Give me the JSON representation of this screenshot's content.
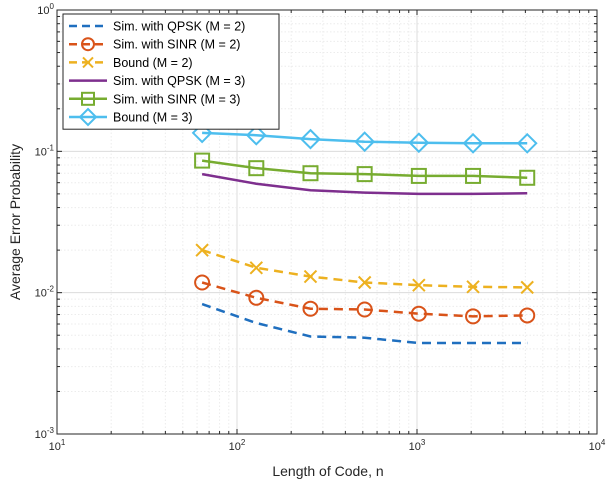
{
  "chart_data": {
    "type": "line",
    "xscale": "log",
    "yscale": "log",
    "xlim": [
      10,
      10000
    ],
    "ylim": [
      0.001,
      1
    ],
    "xlabel": "Length of Code, n",
    "ylabel": "Average Error Probability",
    "grid": true,
    "legend_position": "top-left",
    "x_ticks": [
      {
        "base": "10",
        "exp": "1"
      },
      {
        "base": "10",
        "exp": "2"
      },
      {
        "base": "10",
        "exp": "3"
      },
      {
        "base": "10",
        "exp": "4"
      }
    ],
    "y_ticks": [
      {
        "base": "10",
        "exp": "0"
      },
      {
        "base": "10",
        "exp": "-1"
      },
      {
        "base": "10",
        "exp": "-2"
      },
      {
        "base": "10",
        "exp": "-3"
      }
    ],
    "series": [
      {
        "name": "Sim. with QPSK (M = 2)",
        "color": "#1f6fbf",
        "dash": "dashed",
        "marker": "none",
        "x": [
          64,
          128,
          256,
          512,
          1024,
          2048,
          4096
        ],
        "y": [
          0.0083,
          0.0061,
          0.0049,
          0.0048,
          0.0044,
          0.0044,
          0.0044
        ]
      },
      {
        "name": "Sim. with SINR (M = 2)",
        "color": "#d95319",
        "dash": "dashed",
        "marker": "circle",
        "x": [
          64,
          128,
          256,
          512,
          1024,
          2048,
          4096
        ],
        "y": [
          0.0118,
          0.0092,
          0.0077,
          0.0076,
          0.0071,
          0.0068,
          0.0069
        ]
      },
      {
        "name": "Bound (M = 2)",
        "color": "#edb120",
        "dash": "dashed",
        "marker": "x",
        "x": [
          64,
          128,
          256,
          512,
          1024,
          2048,
          4096
        ],
        "y": [
          0.02,
          0.015,
          0.013,
          0.0118,
          0.0113,
          0.011,
          0.0109
        ]
      },
      {
        "name": "Sim. with QPSK (M = 3)",
        "color": "#7e2f8e",
        "dash": "solid",
        "marker": "none",
        "x": [
          64,
          128,
          256,
          512,
          1024,
          2048,
          4096
        ],
        "y": [
          0.069,
          0.059,
          0.053,
          0.051,
          0.05,
          0.05,
          0.0505
        ]
      },
      {
        "name": "Sim. with SINR (M = 3)",
        "color": "#77ac30",
        "dash": "solid",
        "marker": "square",
        "x": [
          64,
          128,
          256,
          512,
          1024,
          2048,
          4096
        ],
        "y": [
          0.086,
          0.076,
          0.07,
          0.069,
          0.067,
          0.067,
          0.065
        ]
      },
      {
        "name": "Bound (M = 3)",
        "color": "#4dbeee",
        "dash": "solid",
        "marker": "diamond",
        "x": [
          64,
          128,
          256,
          512,
          1024,
          2048,
          4096
        ],
        "y": [
          0.135,
          0.13,
          0.122,
          0.117,
          0.115,
          0.114,
          0.114
        ]
      }
    ]
  }
}
